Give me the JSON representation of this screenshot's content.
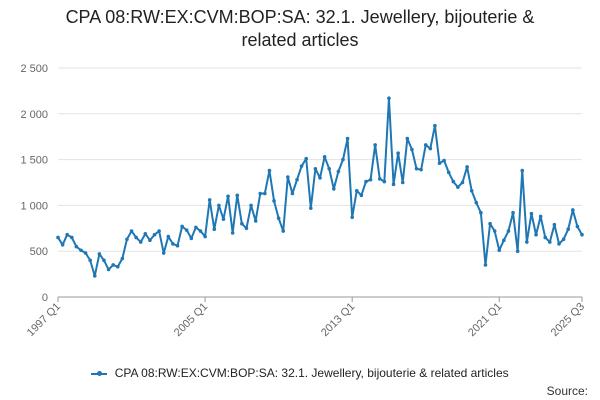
{
  "chart_data": {
    "type": "line",
    "title_lines": [
      "CPA 08:RW:EX:CVM:BOP:SA: 32.1. Jewellery, bijouterie &",
      "related articles"
    ],
    "xlabel": "",
    "ylabel": "",
    "ylim": [
      0,
      2500
    ],
    "yticks": [
      0,
      500,
      1000,
      1500,
      2000,
      2500
    ],
    "ytick_labels": [
      "0",
      "500",
      "1 000",
      "1 500",
      "2 000",
      "2 500"
    ],
    "xtick_labels": [
      "1997 Q1",
      "2005 Q1",
      "2013 Q1",
      "2021 Q1",
      "2025 Q3"
    ],
    "xtick_index": [
      0,
      32,
      64,
      96,
      114
    ],
    "grid": true,
    "legend_position": "bottom",
    "color": "#1f77b4",
    "series": [
      {
        "name": "CPA 08:RW:EX:CVM:BOP:SA: 32.1. Jewellery, bijouterie & related articles",
        "values": [
          650,
          570,
          680,
          650,
          550,
          510,
          480,
          400,
          230,
          470,
          400,
          300,
          350,
          330,
          420,
          630,
          720,
          650,
          600,
          690,
          620,
          680,
          720,
          480,
          660,
          580,
          560,
          770,
          730,
          640,
          760,
          720,
          660,
          1060,
          740,
          1000,
          850,
          1100,
          700,
          1110,
          800,
          750,
          1000,
          830,
          1130,
          1130,
          1380,
          1050,
          860,
          720,
          1310,
          1130,
          1280,
          1430,
          1510,
          970,
          1400,
          1300,
          1530,
          1400,
          1180,
          1370,
          1500,
          1730,
          870,
          1160,
          1110,
          1260,
          1280,
          1660,
          1290,
          1260,
          2170,
          1230,
          1570,
          1250,
          1730,
          1610,
          1400,
          1390,
          1660,
          1620,
          1870,
          1460,
          1490,
          1360,
          1260,
          1200,
          1250,
          1420,
          1160,
          1030,
          920,
          350,
          800,
          720,
          510,
          620,
          720,
          920,
          500,
          1380,
          600,
          910,
          680,
          880,
          650,
          600,
          790,
          580,
          630,
          740,
          950,
          770,
          680
        ]
      }
    ]
  },
  "source_label": "Source:"
}
